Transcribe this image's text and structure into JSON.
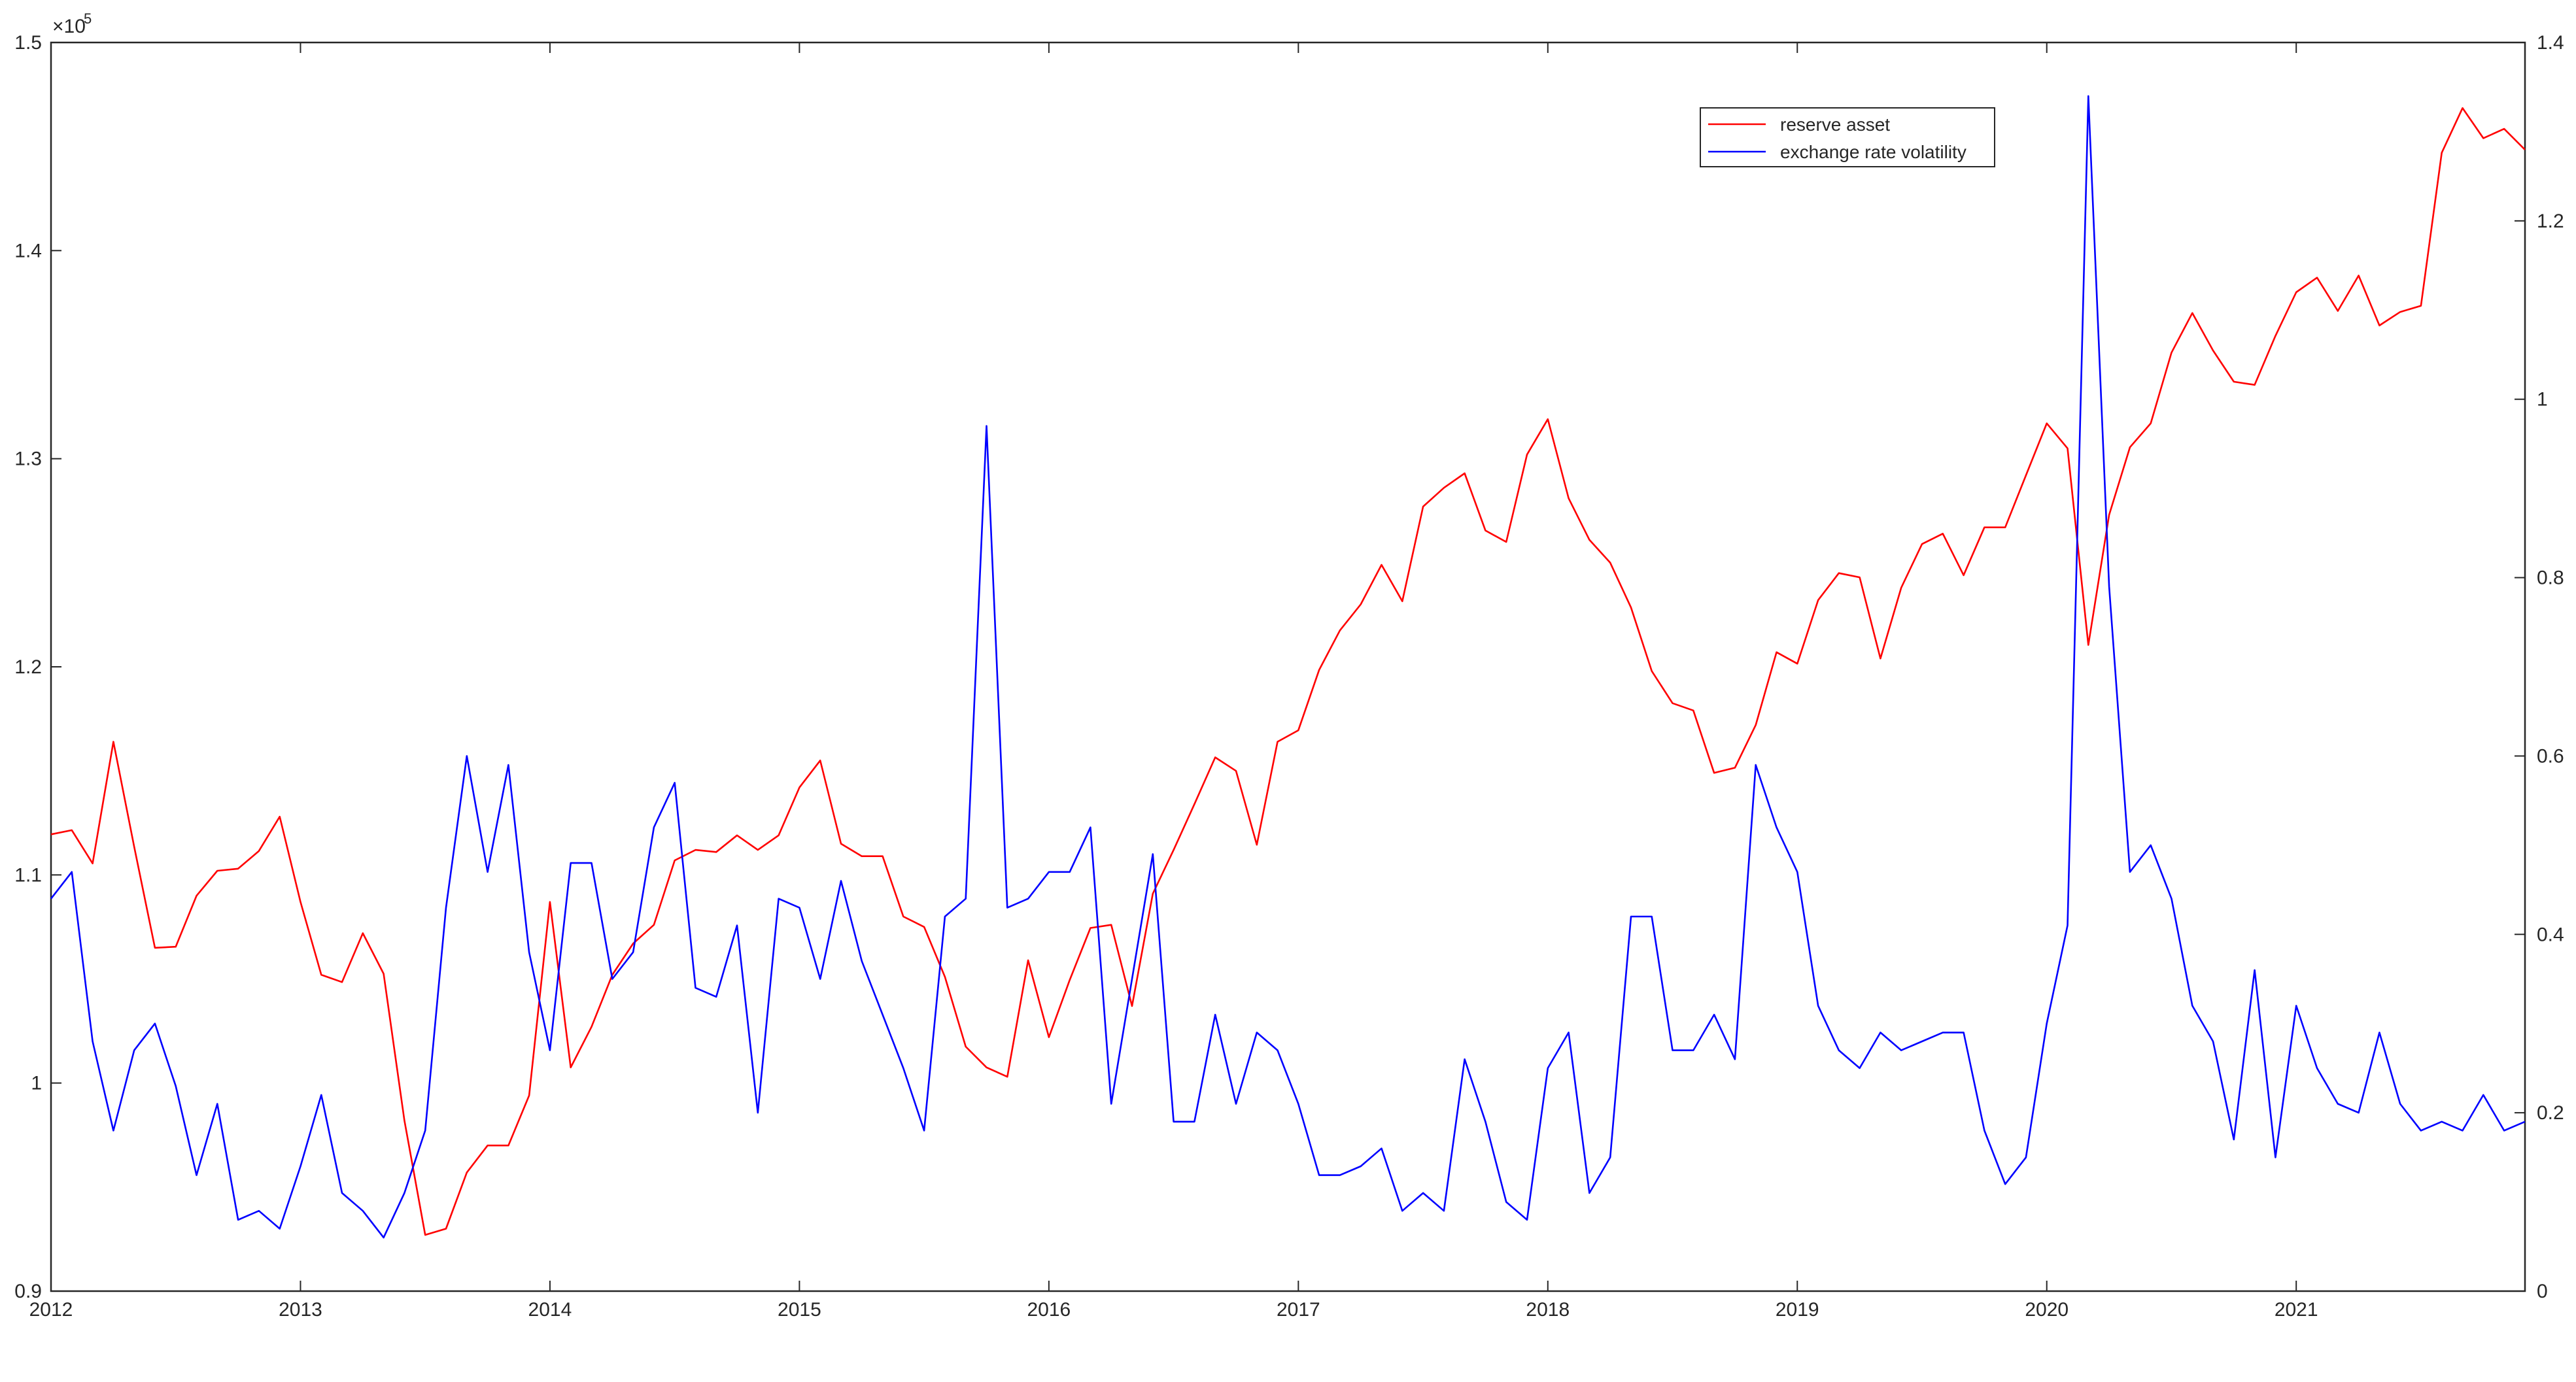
{
  "chart_data": {
    "type": "line",
    "title": "",
    "xlabel": "",
    "ylabel": "",
    "y_exponent_label": "×10",
    "y_exponent_power": "5",
    "x_range": [
      2012,
      2021.917
    ],
    "x_tick_labels": [
      "2012",
      "2013",
      "2014",
      "2015",
      "2016",
      "2017",
      "2018",
      "2019",
      "2020",
      "2021"
    ],
    "y_left": {
      "range": [
        0.9,
        1.5
      ],
      "scale": 100000,
      "tick_labels": [
        "0.9",
        "1",
        "1.1",
        "1.2",
        "1.3",
        "1.4",
        "1.5"
      ]
    },
    "y_right": {
      "range": [
        0,
        1.4
      ],
      "tick_labels": [
        "0",
        "0.2",
        "0.4",
        "0.6",
        "0.8",
        "1",
        "1.2",
        "1.4"
      ]
    },
    "grid": false,
    "legend_position": "top-right",
    "series": [
      {
        "name": "reserve asset",
        "color": "#ff0000",
        "axis": "left",
        "values": [
          111950,
          112150,
          110550,
          116400,
          111350,
          106500,
          106550,
          109000,
          110200,
          110300,
          111150,
          112800,
          108700,
          105200,
          104850,
          107200,
          105250,
          98200,
          92700,
          93000,
          95700,
          97000,
          97000,
          99400,
          108700,
          100750,
          102700,
          105200,
          106700,
          107600,
          110700,
          111200,
          111100,
          111900,
          111200,
          111900,
          114200,
          115500,
          111500,
          110900,
          110900,
          108000,
          107500,
          105100,
          101750,
          100750,
          100300,
          105900,
          102200,
          104950,
          107450,
          107600,
          103700,
          109100,
          111200,
          113400,
          115650,
          115000,
          111450,
          116400,
          116950,
          119850,
          121750,
          123000,
          124900,
          123150,
          127700,
          128600,
          129300,
          126550,
          126000,
          130200,
          131900,
          128100,
          126100,
          125000,
          122850,
          119800,
          118250,
          117900,
          114900,
          115150,
          117200,
          120700,
          120150,
          123200,
          124500,
          124300,
          120400,
          123800,
          125900,
          126400,
          124400,
          126700,
          126700,
          129200,
          131700,
          130500,
          121050,
          127300,
          130550,
          131700,
          135100,
          137000,
          135200,
          133700,
          133550,
          135900,
          138000,
          138700,
          137100,
          138800,
          136400,
          137050,
          137350,
          144700,
          146850,
          145400,
          145850,
          144850
        ]
      },
      {
        "name": "exchange rate volatility",
        "color": "#0000ff",
        "axis": "right",
        "values": [
          0.44,
          0.47,
          0.28,
          0.18,
          0.27,
          0.3,
          0.23,
          0.13,
          0.21,
          0.08,
          0.09,
          0.07,
          0.14,
          0.22,
          0.11,
          0.09,
          0.06,
          0.11,
          0.18,
          0.43,
          0.6,
          0.47,
          0.59,
          0.38,
          0.27,
          0.48,
          0.48,
          0.35,
          0.38,
          0.52,
          0.57,
          0.34,
          0.33,
          0.41,
          0.2,
          0.44,
          0.43,
          0.35,
          0.46,
          0.37,
          0.31,
          0.25,
          0.18,
          0.42,
          0.44,
          0.97,
          0.43,
          0.44,
          0.47,
          0.47,
          0.52,
          0.21,
          0.35,
          0.49,
          0.19,
          0.19,
          0.31,
          0.21,
          0.29,
          0.27,
          0.21,
          0.13,
          0.13,
          0.14,
          0.16,
          0.09,
          0.11,
          0.09,
          0.26,
          0.19,
          0.1,
          0.08,
          0.25,
          0.29,
          0.11,
          0.15,
          0.42,
          0.42,
          0.27,
          0.27,
          0.31,
          0.26,
          0.59,
          0.52,
          0.47,
          0.32,
          0.27,
          0.25,
          0.29,
          0.27,
          0.28,
          0.29,
          0.29,
          0.18,
          0.12,
          0.15,
          0.3,
          0.41,
          1.34,
          0.79,
          0.47,
          0.5,
          0.44,
          0.32,
          0.28,
          0.17,
          0.36,
          0.15,
          0.32,
          0.25,
          0.21,
          0.2,
          0.29,
          0.21,
          0.18,
          0.19,
          0.18,
          0.22,
          0.18,
          0.19
        ]
      }
    ],
    "legend": [
      {
        "label": "reserve asset",
        "color": "#ff0000"
      },
      {
        "label": "exchange rate volatility",
        "color": "#0000ff"
      }
    ]
  }
}
